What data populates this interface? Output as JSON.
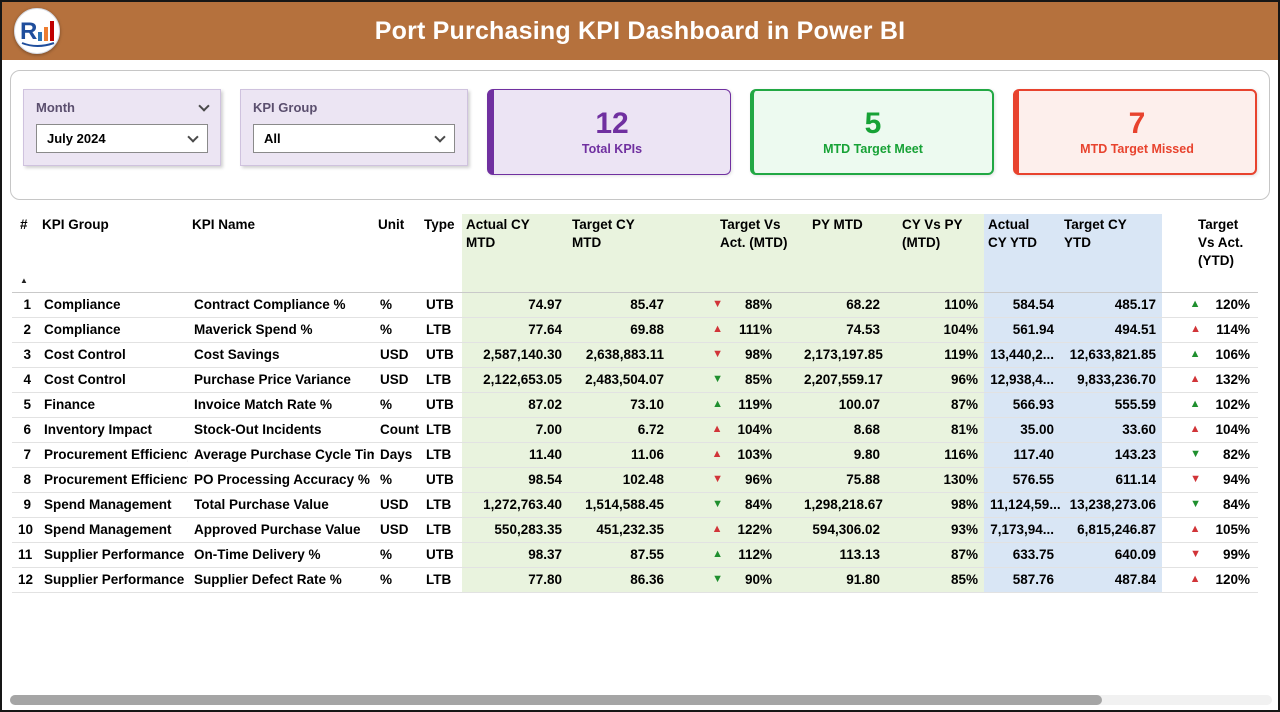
{
  "header": {
    "title": "Port Purchasing KPI Dashboard in Power BI"
  },
  "colors": {
    "header_bg": "#b5713d",
    "accent_purple": "#7030a0",
    "accent_green": "#22a844",
    "accent_red": "#e8432e",
    "arrow_good": "#1f8f2e",
    "arrow_bad": "#d13438",
    "mtd_block_bg": "#e9f3de",
    "ytd_block_bg": "#d9e6f5"
  },
  "icons": {
    "arrow_up": "▲",
    "arrow_down": "▼"
  },
  "filters": {
    "month": {
      "label": "Month",
      "value": "July 2024"
    },
    "kpi_group": {
      "label": "KPI Group",
      "value": "All"
    }
  },
  "cards": [
    {
      "value": "12",
      "label": "Total KPIs"
    },
    {
      "value": "5",
      "label": "MTD Target Meet"
    },
    {
      "value": "7",
      "label": "MTD Target Missed"
    }
  ],
  "table": {
    "columns": [
      "#",
      "KPI Group",
      "KPI Name",
      "Unit",
      "Type",
      "Actual CY MTD",
      "Target CY MTD",
      "Target Vs Act. (MTD)",
      "PY MTD",
      "CY Vs PY (MTD)",
      "Actual CY YTD",
      "Target CY YTD",
      "Target Vs Act. (YTD)"
    ],
    "rows": [
      {
        "n": "1",
        "group": "Compliance",
        "name": "Contract Compliance %",
        "unit": "%",
        "type": "UTB",
        "amtd": "74.97",
        "tmtd": "85.47",
        "tva_mtd": {
          "dir": "down",
          "good": false,
          "pct": "88%"
        },
        "pymtd": "68.22",
        "cyvspy": "110%",
        "aytd": "584.54",
        "tytd": "485.17",
        "tva_ytd": {
          "dir": "up",
          "good": true,
          "pct": "120%"
        }
      },
      {
        "n": "2",
        "group": "Compliance",
        "name": "Maverick Spend %",
        "unit": "%",
        "type": "LTB",
        "amtd": "77.64",
        "tmtd": "69.88",
        "tva_mtd": {
          "dir": "up",
          "good": false,
          "pct": "111%"
        },
        "pymtd": "74.53",
        "cyvspy": "104%",
        "aytd": "561.94",
        "tytd": "494.51",
        "tva_ytd": {
          "dir": "up",
          "good": false,
          "pct": "114%"
        }
      },
      {
        "n": "3",
        "group": "Cost Control",
        "name": "Cost Savings",
        "unit": "USD",
        "type": "UTB",
        "amtd": "2,587,140.30",
        "tmtd": "2,638,883.11",
        "tva_mtd": {
          "dir": "down",
          "good": false,
          "pct": "98%"
        },
        "pymtd": "2,173,197.85",
        "cyvspy": "119%",
        "aytd": "13,440,2...",
        "tytd": "12,633,821.85",
        "tva_ytd": {
          "dir": "up",
          "good": true,
          "pct": "106%"
        }
      },
      {
        "n": "4",
        "group": "Cost Control",
        "name": "Purchase Price Variance",
        "unit": "USD",
        "type": "LTB",
        "amtd": "2,122,653.05",
        "tmtd": "2,483,504.07",
        "tva_mtd": {
          "dir": "down",
          "good": true,
          "pct": "85%"
        },
        "pymtd": "2,207,559.17",
        "cyvspy": "96%",
        "aytd": "12,938,4...",
        "tytd": "9,833,236.70",
        "tva_ytd": {
          "dir": "up",
          "good": false,
          "pct": "132%"
        }
      },
      {
        "n": "5",
        "group": "Finance",
        "name": "Invoice Match Rate %",
        "unit": "%",
        "type": "UTB",
        "amtd": "87.02",
        "tmtd": "73.10",
        "tva_mtd": {
          "dir": "up",
          "good": true,
          "pct": "119%"
        },
        "pymtd": "100.07",
        "cyvspy": "87%",
        "aytd": "566.93",
        "tytd": "555.59",
        "tva_ytd": {
          "dir": "up",
          "good": true,
          "pct": "102%"
        }
      },
      {
        "n": "6",
        "group": "Inventory Impact",
        "name": "Stock-Out Incidents",
        "unit": "Count",
        "type": "LTB",
        "amtd": "7.00",
        "tmtd": "6.72",
        "tva_mtd": {
          "dir": "up",
          "good": false,
          "pct": "104%"
        },
        "pymtd": "8.68",
        "cyvspy": "81%",
        "aytd": "35.00",
        "tytd": "33.60",
        "tva_ytd": {
          "dir": "up",
          "good": false,
          "pct": "104%"
        }
      },
      {
        "n": "7",
        "group": "Procurement Efficiency",
        "name": "Average Purchase Cycle Time",
        "unit": "Days",
        "type": "LTB",
        "amtd": "11.40",
        "tmtd": "11.06",
        "tva_mtd": {
          "dir": "up",
          "good": false,
          "pct": "103%"
        },
        "pymtd": "9.80",
        "cyvspy": "116%",
        "aytd": "117.40",
        "tytd": "143.23",
        "tva_ytd": {
          "dir": "down",
          "good": true,
          "pct": "82%"
        }
      },
      {
        "n": "8",
        "group": "Procurement Efficiency",
        "name": "PO Processing Accuracy %",
        "unit": "%",
        "type": "UTB",
        "amtd": "98.54",
        "tmtd": "102.48",
        "tva_mtd": {
          "dir": "down",
          "good": false,
          "pct": "96%"
        },
        "pymtd": "75.88",
        "cyvspy": "130%",
        "aytd": "576.55",
        "tytd": "611.14",
        "tva_ytd": {
          "dir": "down",
          "good": false,
          "pct": "94%"
        }
      },
      {
        "n": "9",
        "group": "Spend Management",
        "name": "Total Purchase Value",
        "unit": "USD",
        "type": "LTB",
        "amtd": "1,272,763.40",
        "tmtd": "1,514,588.45",
        "tva_mtd": {
          "dir": "down",
          "good": true,
          "pct": "84%"
        },
        "pymtd": "1,298,218.67",
        "cyvspy": "98%",
        "aytd": "11,124,59...",
        "tytd": "13,238,273.06",
        "tva_ytd": {
          "dir": "down",
          "good": true,
          "pct": "84%"
        }
      },
      {
        "n": "10",
        "group": "Spend Management",
        "name": "Approved Purchase Value",
        "unit": "USD",
        "type": "LTB",
        "amtd": "550,283.35",
        "tmtd": "451,232.35",
        "tva_mtd": {
          "dir": "up",
          "good": false,
          "pct": "122%"
        },
        "pymtd": "594,306.02",
        "cyvspy": "93%",
        "aytd": "7,173,94...",
        "tytd": "6,815,246.87",
        "tva_ytd": {
          "dir": "up",
          "good": false,
          "pct": "105%"
        }
      },
      {
        "n": "11",
        "group": "Supplier Performance",
        "name": "On-Time Delivery %",
        "unit": "%",
        "type": "UTB",
        "amtd": "98.37",
        "tmtd": "87.55",
        "tva_mtd": {
          "dir": "up",
          "good": true,
          "pct": "112%"
        },
        "pymtd": "113.13",
        "cyvspy": "87%",
        "aytd": "633.75",
        "tytd": "640.09",
        "tva_ytd": {
          "dir": "down",
          "good": false,
          "pct": "99%"
        }
      },
      {
        "n": "12",
        "group": "Supplier Performance",
        "name": "Supplier Defect Rate %",
        "unit": "%",
        "type": "LTB",
        "amtd": "77.80",
        "tmtd": "86.36",
        "tva_mtd": {
          "dir": "down",
          "good": true,
          "pct": "90%"
        },
        "pymtd": "91.80",
        "cyvspy": "85%",
        "aytd": "587.76",
        "tytd": "487.84",
        "tva_ytd": {
          "dir": "up",
          "good": false,
          "pct": "120%"
        }
      }
    ]
  }
}
